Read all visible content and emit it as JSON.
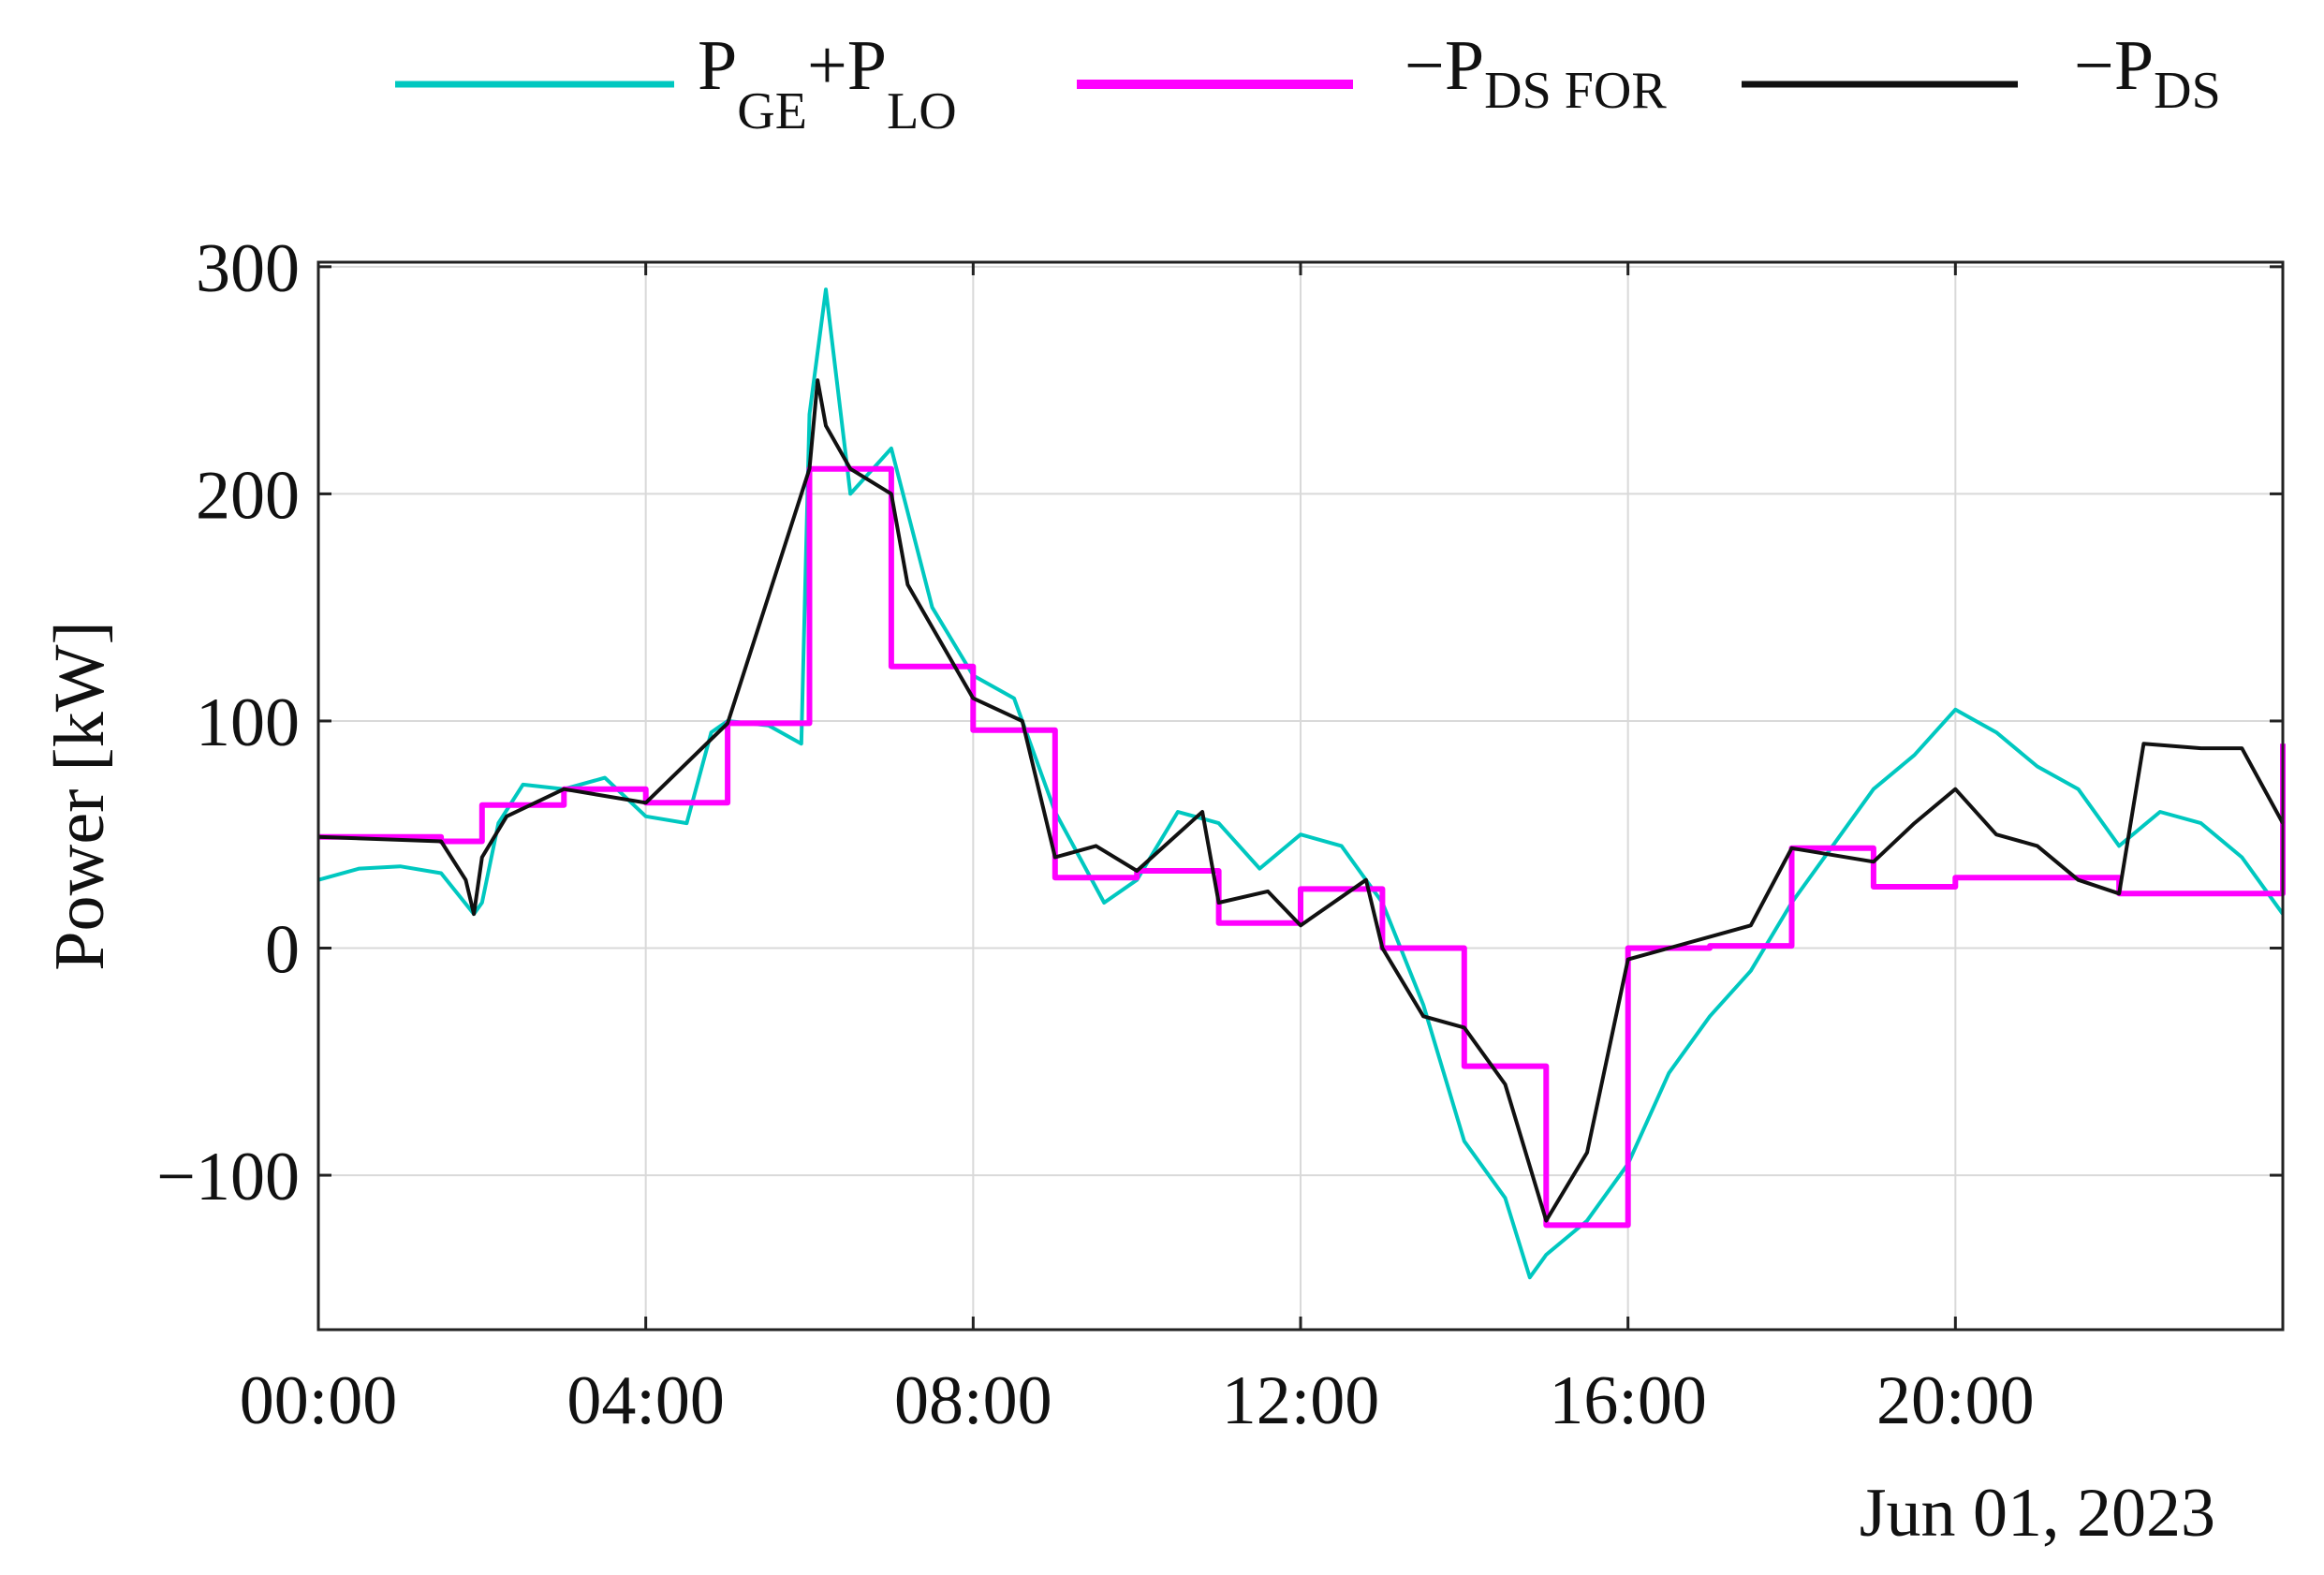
{
  "chart_data": {
    "type": "line",
    "title": "",
    "xlabel": "",
    "ylabel": "Power [kW]",
    "date_label": "Jun 01, 2023",
    "xlim_hours": [
      0,
      24
    ],
    "ylim": [
      -168,
      302
    ],
    "grid": true,
    "legend_position": "top (above plot, horizontal)",
    "x_ticks": [
      {
        "hour": 0,
        "label": "00:00"
      },
      {
        "hour": 4,
        "label": "04:00"
      },
      {
        "hour": 8,
        "label": "08:00"
      },
      {
        "hour": 12,
        "label": "12:00"
      },
      {
        "hour": 16,
        "label": "16:00"
      },
      {
        "hour": 20,
        "label": "20:00"
      }
    ],
    "y_ticks": [
      {
        "value": -100,
        "label": "−100"
      },
      {
        "value": 0,
        "label": "0"
      },
      {
        "value": 100,
        "label": "100"
      },
      {
        "value": 200,
        "label": "200"
      },
      {
        "value": 300,
        "label": "300"
      }
    ],
    "legend": [
      {
        "main": "P",
        "sub": "GE",
        "mid": "+P",
        "sub2": "LO",
        "color": "#00c8c0"
      },
      {
        "main": "−P",
        "sub": "DS FOR",
        "color": "#ff00ff"
      },
      {
        "main": "−P",
        "sub": "DS",
        "color": "#111111"
      }
    ],
    "series": [
      {
        "name": "PGE+PLO",
        "color": "#00c8c0",
        "x_hours": [
          0,
          0.5,
          1,
          1.5,
          1.9,
          2.0,
          2.2,
          2.5,
          3,
          3.5,
          4,
          4.5,
          4.8,
          5,
          5.5,
          5.9,
          6.0,
          6.2,
          6.5,
          7,
          7.5,
          8,
          8.5,
          9,
          9.3,
          9.6,
          10,
          10.5,
          11,
          11.5,
          12,
          12.5,
          13,
          13.5,
          14,
          14.5,
          14.8,
          15,
          15.5,
          16,
          16.5,
          17,
          17.5,
          18,
          18.5,
          19,
          19.5,
          20,
          20.5,
          21,
          21.5,
          22,
          22.5,
          23,
          23.5,
          24
        ],
        "y_values": [
          30,
          35,
          36,
          33,
          15,
          20,
          55,
          72,
          70,
          75,
          58,
          55,
          95,
          100,
          98,
          90,
          235,
          290,
          200,
          220,
          150,
          120,
          110,
          60,
          40,
          20,
          30,
          60,
          55,
          35,
          50,
          45,
          20,
          -25,
          -85,
          -110,
          -145,
          -135,
          -120,
          -95,
          -55,
          -30,
          -10,
          20,
          45,
          70,
          85,
          105,
          95,
          80,
          70,
          45,
          60,
          55,
          40,
          15
        ]
      },
      {
        "name": "−PDS FOR",
        "color": "#ff00ff",
        "x_hours": [
          0,
          1.5,
          2,
          3,
          4,
          5,
          6,
          7,
          8,
          9,
          10,
          11,
          12,
          13,
          14,
          15,
          16,
          17,
          18,
          19,
          20,
          21,
          22,
          24
        ],
        "y_values": [
          49,
          47,
          63,
          70,
          64,
          99,
          211,
          124,
          96,
          31,
          34,
          11,
          26,
          0,
          -52,
          -122,
          0,
          1,
          44,
          27,
          31,
          31,
          24,
          90
        ]
      },
      {
        "name": "−PDS",
        "color": "#111111",
        "x_hours": [
          0,
          1.5,
          1.8,
          1.9,
          2.0,
          2.3,
          3,
          4,
          5,
          6,
          6.1,
          6.2,
          6.5,
          7,
          7.2,
          7.6,
          8,
          8.6,
          9,
          9.5,
          10,
          10.8,
          11,
          11.6,
          12,
          12.8,
          13,
          13.5,
          14,
          14.5,
          15,
          15.5,
          16,
          16.5,
          17,
          17.5,
          18,
          19,
          19.5,
          20,
          20.5,
          21,
          21.5,
          22,
          22.3,
          23,
          23.5,
          24
        ],
        "y_values": [
          49,
          47,
          30,
          15,
          40,
          58,
          70,
          64,
          99,
          211,
          250,
          230,
          211,
          200,
          160,
          135,
          110,
          100,
          40,
          45,
          34,
          60,
          20,
          25,
          10,
          30,
          0,
          -30,
          -35,
          -60,
          -120,
          -90,
          -5,
          0,
          5,
          10,
          44,
          38,
          55,
          70,
          50,
          45,
          30,
          24,
          90,
          88,
          88,
          55
        ]
      }
    ]
  }
}
